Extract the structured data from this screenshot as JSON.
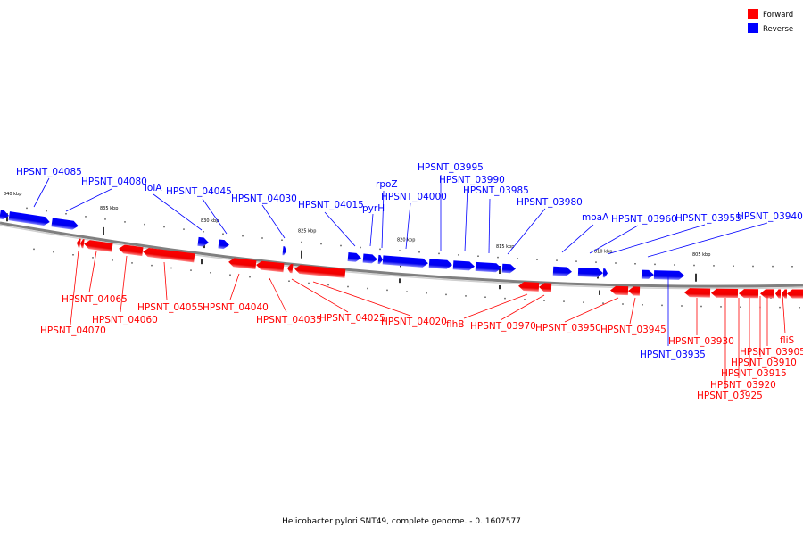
{
  "caption": "Helicobacter pylori SNT49, complete genome. - 0..1607577",
  "legend": {
    "forward": {
      "label": "Forward",
      "color": "#ff0000"
    },
    "reverse": {
      "label": "Reverse",
      "color": "#0000ff"
    }
  },
  "backbone_color": "#808080",
  "ticks": [
    {
      "kbp": 840,
      "label": "840 kbp"
    },
    {
      "kbp": 835,
      "label": "835 kbp"
    },
    {
      "kbp": 830,
      "label": "830 kbp"
    },
    {
      "kbp": 825,
      "label": "825 kbp"
    },
    {
      "kbp": 820,
      "label": "820 kbp"
    },
    {
      "kbp": 815,
      "label": "815 kbp"
    },
    {
      "kbp": 810,
      "label": "810 kbp"
    },
    {
      "kbp": 805,
      "label": "805 kbp"
    }
  ],
  "reverse_genes": [
    {
      "name": "HPSNT_04085"
    },
    {
      "name": "HPSNT_04080"
    },
    {
      "name": "lolA"
    },
    {
      "name": "HPSNT_04045"
    },
    {
      "name": "HPSNT_04030"
    },
    {
      "name": "HPSNT_04015"
    },
    {
      "name": "pyrH"
    },
    {
      "name": "rpoZ"
    },
    {
      "name": "HPSNT_04000"
    },
    {
      "name": "HPSNT_03995"
    },
    {
      "name": "HPSNT_03990"
    },
    {
      "name": "HPSNT_03985"
    },
    {
      "name": "HPSNT_03980"
    },
    {
      "name": "moaA"
    },
    {
      "name": "HPSNT_03960"
    },
    {
      "name": "HPSNT_03955"
    },
    {
      "name": "HPSNT_03940"
    },
    {
      "name": "HPSNT_03935"
    }
  ],
  "forward_genes": [
    {
      "name": "HPSNT_04070"
    },
    {
      "name": "HPSNT_04065"
    },
    {
      "name": "HPSNT_04060"
    },
    {
      "name": "HPSNT_04055"
    },
    {
      "name": "HPSNT_04040"
    },
    {
      "name": "HPSNT_04035"
    },
    {
      "name": "HPSNT_04025"
    },
    {
      "name": "HPSNT_04020"
    },
    {
      "name": "flhB"
    },
    {
      "name": "HPSNT_03970"
    },
    {
      "name": "HPSNT_03950"
    },
    {
      "name": "HPSNT_03945"
    },
    {
      "name": "HPSNT_03930"
    },
    {
      "name": "HPSNT_03925"
    },
    {
      "name": "HPSNT_03920"
    },
    {
      "name": "HPSNT_03915"
    },
    {
      "name": "HPSNT_03910"
    },
    {
      "name": "HPSNT_03905"
    },
    {
      "name": "fliS"
    }
  ]
}
